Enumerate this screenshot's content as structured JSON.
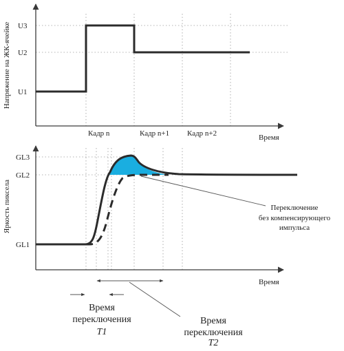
{
  "top_chart": {
    "ylabel": "Напряжение на ЖК-ячейке",
    "y_ticks": [
      "U3",
      "U2",
      "U1"
    ],
    "x_ticks": [
      "Кадр n",
      "Кадр n+1",
      "Кадр n+2"
    ],
    "xlabel": "Время"
  },
  "bottom_chart": {
    "ylabel": "Яркость пиксела",
    "y_ticks": [
      "GL3",
      "GL2",
      "GL1"
    ],
    "xlabel": "Время",
    "callout": [
      "Переключение",
      "без компенсирующего",
      "импульса"
    ]
  },
  "time_labels": {
    "t1_line1": "Время",
    "t1_line2": "переключения",
    "t1_sym": "T1",
    "t2_line1": "Время",
    "t2_line2": "переключения",
    "t2_sym": "T2"
  },
  "colors": {
    "overshoot_fill": "#1AAEE0",
    "line": "#2b2b2b"
  }
}
